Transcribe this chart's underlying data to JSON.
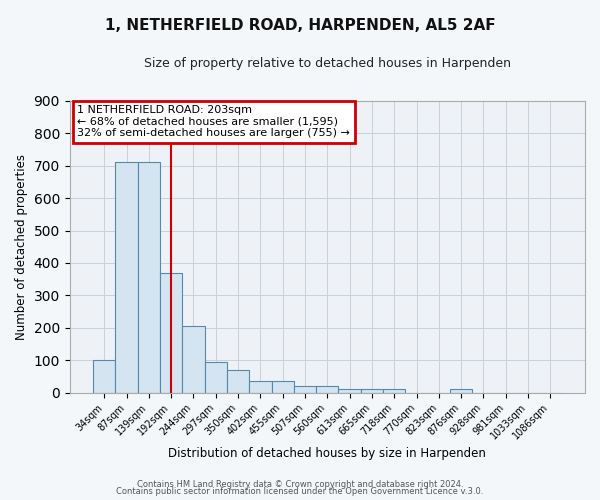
{
  "title": "1, NETHERFIELD ROAD, HARPENDEN, AL5 2AF",
  "subtitle": "Size of property relative to detached houses in Harpenden",
  "xlabel": "Distribution of detached houses by size in Harpenden",
  "ylabel": "Number of detached properties",
  "bar_labels": [
    "34sqm",
    "87sqm",
    "139sqm",
    "192sqm",
    "244sqm",
    "297sqm",
    "350sqm",
    "402sqm",
    "455sqm",
    "507sqm",
    "560sqm",
    "613sqm",
    "665sqm",
    "718sqm",
    "770sqm",
    "823sqm",
    "876sqm",
    "928sqm",
    "981sqm",
    "1033sqm",
    "1086sqm"
  ],
  "bar_values": [
    100,
    710,
    710,
    370,
    205,
    95,
    70,
    35,
    35,
    22,
    22,
    10,
    10,
    10,
    0,
    0,
    10,
    0,
    0,
    0,
    0
  ],
  "bar_color": "#d4e4f0",
  "bar_edge_color": "#5588aa",
  "vline_x": 3,
  "vline_color": "#cc0000",
  "ylim": [
    0,
    900
  ],
  "yticks": [
    0,
    100,
    200,
    300,
    400,
    500,
    600,
    700,
    800,
    900
  ],
  "annotation_title": "1 NETHERFIELD ROAD: 203sqm",
  "annotation_line1": "← 68% of detached houses are smaller (1,595)",
  "annotation_line2": "32% of semi-detached houses are larger (755) →",
  "annotation_box_color": "#cc0000",
  "footer_line1": "Contains HM Land Registry data © Crown copyright and database right 2024.",
  "footer_line2": "Contains public sector information licensed under the Open Government Licence v.3.0.",
  "fig_bg_color": "#f4f7fa",
  "plot_bg_color": "#eef2f7",
  "grid_color": "#c8d0dc"
}
